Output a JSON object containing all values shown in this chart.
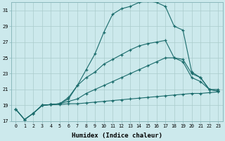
{
  "xlabel": "Humidex (Indice chaleur)",
  "background_color": "#cce9ec",
  "grid_color": "#aacccc",
  "line_color": "#1a6b6b",
  "xlim": [
    -0.5,
    23.5
  ],
  "ylim": [
    17,
    32
  ],
  "yticks": [
    17,
    19,
    21,
    23,
    25,
    27,
    29,
    31
  ],
  "xticks": [
    0,
    1,
    2,
    3,
    4,
    5,
    6,
    7,
    8,
    9,
    10,
    11,
    12,
    13,
    14,
    15,
    16,
    17,
    18,
    19,
    20,
    21,
    22,
    23
  ],
  "line1_x": [
    0,
    1,
    2,
    3,
    4,
    5,
    6,
    7,
    8,
    9,
    10,
    11,
    12,
    13,
    14,
    15,
    16,
    17,
    18,
    19,
    20,
    21,
    22,
    23
  ],
  "line1_y": [
    18.5,
    17.2,
    18.0,
    19.0,
    19.1,
    19.1,
    19.2,
    19.2,
    19.3,
    19.4,
    19.5,
    19.6,
    19.7,
    19.8,
    19.9,
    20.0,
    20.1,
    20.2,
    20.3,
    20.4,
    20.5,
    20.5,
    20.6,
    20.7
  ],
  "line2_x": [
    0,
    1,
    2,
    3,
    4,
    5,
    6,
    7,
    8,
    9,
    10,
    11,
    12,
    13,
    14,
    15,
    16,
    17,
    18,
    19,
    20,
    21,
    22,
    23
  ],
  "line2_y": [
    18.5,
    17.2,
    18.0,
    19.0,
    19.1,
    19.2,
    20.0,
    21.5,
    22.5,
    23.2,
    24.2,
    24.8,
    25.4,
    26.0,
    26.5,
    26.8,
    27.0,
    27.2,
    25.0,
    24.5,
    22.5,
    22.0,
    21.0,
    20.8
  ],
  "line3_x": [
    2,
    3,
    4,
    5,
    6,
    7,
    8,
    9,
    10,
    11,
    12,
    13,
    14,
    15,
    16,
    17,
    18,
    19,
    20,
    21,
    22,
    23
  ],
  "line3_y": [
    18.0,
    19.0,
    19.1,
    19.2,
    19.8,
    21.5,
    23.5,
    25.5,
    28.2,
    30.5,
    31.2,
    31.5,
    32.0,
    32.2,
    32.0,
    31.5,
    29.0,
    28.5,
    23.2,
    22.5,
    21.0,
    21.0
  ],
  "line4_x": [
    0,
    1,
    2,
    3,
    4,
    5,
    6,
    7,
    8,
    9,
    10,
    11,
    12,
    13,
    14,
    15,
    16,
    17,
    18,
    19,
    20,
    21,
    22,
    23
  ],
  "line4_y": [
    18.5,
    17.2,
    18.0,
    19.0,
    19.1,
    19.2,
    19.5,
    19.8,
    20.5,
    21.0,
    21.5,
    22.0,
    22.5,
    23.0,
    23.5,
    24.0,
    24.5,
    25.0,
    25.0,
    24.8,
    23.0,
    22.5,
    21.0,
    20.8
  ]
}
